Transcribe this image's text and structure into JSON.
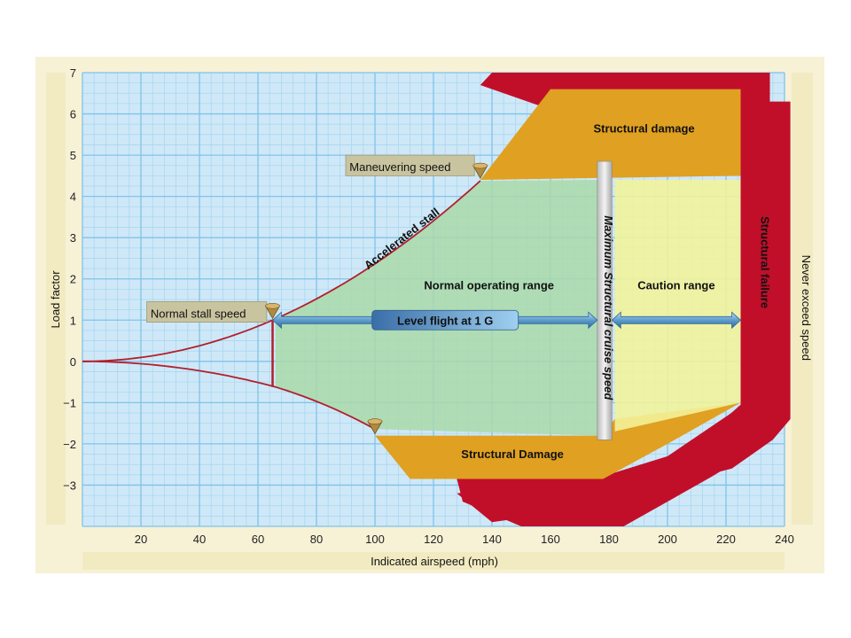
{
  "chart_data": {
    "type": "area",
    "xlabel": "Indicated airspeed (mph)",
    "ylabel": "Load factor",
    "xlim": [
      0,
      240
    ],
    "ylim": [
      -4,
      7
    ],
    "x_ticks": [
      20,
      40,
      60,
      80,
      100,
      120,
      140,
      160,
      180,
      200,
      220,
      240
    ],
    "y_ticks": [
      -3,
      -2,
      -1,
      0,
      1,
      2,
      3,
      4,
      5,
      6,
      7
    ],
    "grid": true,
    "stall_curve_positive": {
      "x": [
        0,
        20,
        40,
        65,
        100,
        136
      ],
      "y": [
        0,
        0.1,
        0.4,
        1,
        2.3,
        4.4
      ]
    },
    "stall_curve_negative": {
      "x": [
        0,
        20,
        40,
        65,
        100
      ],
      "y": [
        0,
        -0.1,
        -0.3,
        -0.6,
        -1.8
      ]
    },
    "key_speeds": [
      {
        "label": "Normal stall speed",
        "x": 65,
        "y": 1
      },
      {
        "label": "Maneuvering speed",
        "x": 136,
        "y": 4.4
      },
      {
        "label": "",
        "x": 100,
        "y": -1.8
      }
    ],
    "regions": [
      {
        "label": "Normal operating range",
        "color": "#a9d9a9"
      },
      {
        "label": "Caution range",
        "color": "#f2f29a"
      },
      {
        "label": "Structural damage",
        "color": "#e0a021"
      },
      {
        "label": "Structural Damage",
        "color": "#e0a021"
      },
      {
        "label": "Structural failure",
        "color": "#c10f2a"
      }
    ],
    "annotations": [
      {
        "text": "Level flight at 1 G",
        "y": 1
      },
      {
        "text": "Accelerated stall"
      },
      {
        "text": "Maximum Structural cruise speed",
        "x": 177
      },
      {
        "text": "Never exceed speed",
        "x": 225
      }
    ]
  }
}
